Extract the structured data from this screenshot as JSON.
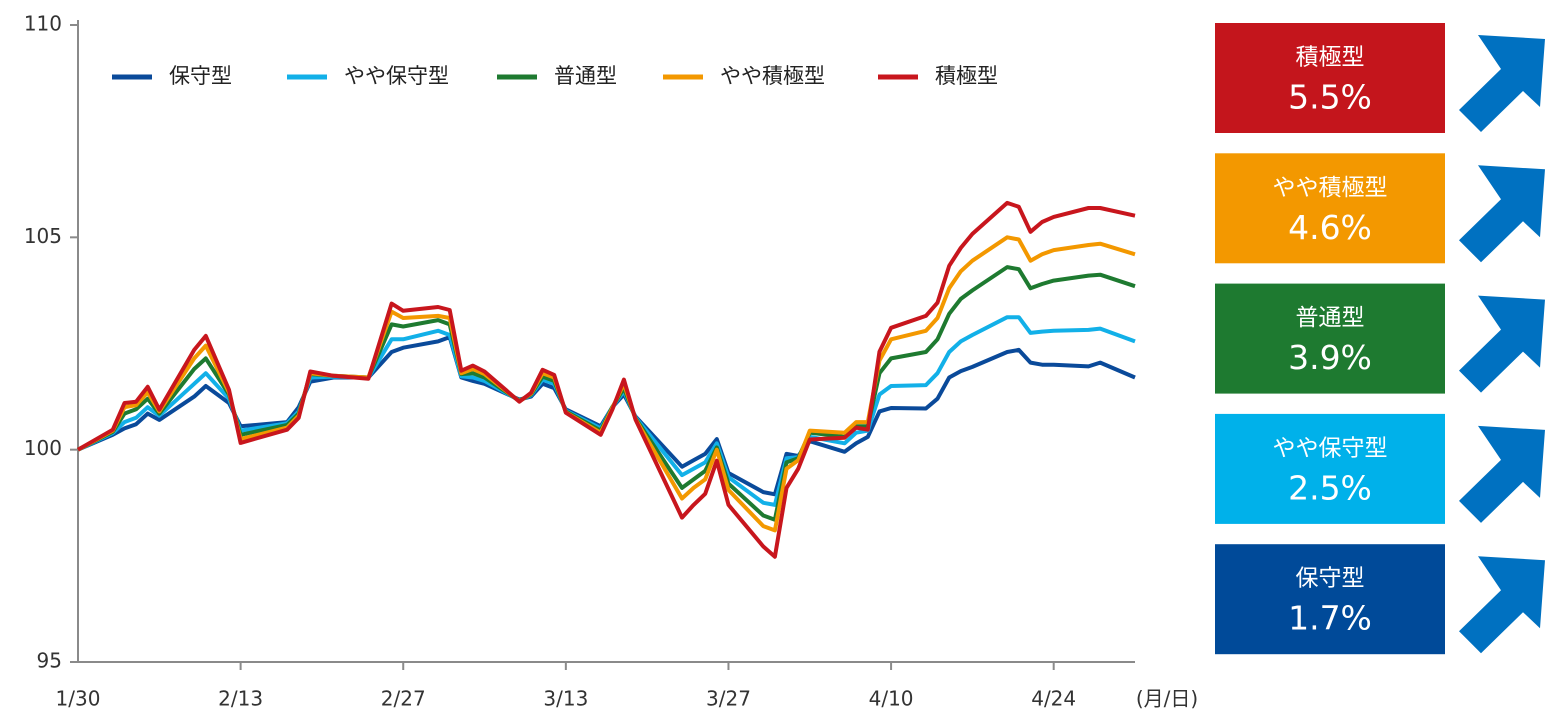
{
  "chart_data": {
    "type": "line",
    "x_label": "(月/日)",
    "xlim": [
      0,
      91
    ],
    "xticks": [
      {
        "value": 0,
        "label": "1/30"
      },
      {
        "value": 14,
        "label": "2/13"
      },
      {
        "value": 28,
        "label": "2/27"
      },
      {
        "value": 42,
        "label": "3/13"
      },
      {
        "value": 56,
        "label": "3/27"
      },
      {
        "value": 70,
        "label": "4/10"
      },
      {
        "value": 84,
        "label": "4/24"
      }
    ],
    "ylim": [
      95,
      110
    ],
    "yticks": [
      95,
      100,
      105,
      110
    ],
    "grid": false,
    "x": [
      0,
      3,
      4,
      5,
      6,
      7,
      10,
      11,
      13,
      14,
      18,
      19,
      20,
      22,
      25,
      27,
      28,
      31,
      32,
      33,
      34,
      35,
      38,
      39,
      40,
      41,
      42,
      45,
      46,
      47,
      48,
      52,
      53,
      54,
      55,
      56,
      59,
      60,
      61,
      62,
      63,
      66,
      67,
      68,
      69,
      70,
      73,
      74,
      75,
      76,
      77,
      80,
      81,
      82,
      83,
      84,
      87,
      88,
      91
    ],
    "series": [
      {
        "name": "保守型",
        "color": "#0a4a9a",
        "values": [
          100,
          100.35,
          100.5,
          100.6,
          100.85,
          100.7,
          101.25,
          101.5,
          101.1,
          100.55,
          100.65,
          101,
          101.6,
          101.7,
          101.7,
          102.3,
          102.4,
          102.55,
          102.65,
          101.7,
          101.62,
          101.55,
          101.18,
          101.25,
          101.55,
          101.45,
          100.95,
          100.55,
          101,
          101.3,
          100.78,
          99.6,
          99.75,
          99.9,
          100.25,
          99.45,
          99,
          98.95,
          99.9,
          99.85,
          100.2,
          99.95,
          100.15,
          100.3,
          100.9,
          100.98,
          100.97,
          101.2,
          101.7,
          101.85,
          101.95,
          102.3,
          102.35,
          102.05,
          102,
          102,
          101.96,
          102.05,
          101.7
        ]
      },
      {
        "name": "やや保守型",
        "color": "#12b0e8",
        "values": [
          100,
          100.39,
          100.65,
          100.75,
          101,
          100.8,
          101.55,
          101.8,
          101.2,
          100.45,
          100.62,
          100.9,
          101.7,
          101.72,
          101.7,
          102.6,
          102.6,
          102.8,
          102.7,
          101.73,
          101.7,
          101.62,
          101.16,
          101.28,
          101.65,
          101.55,
          100.92,
          100.5,
          101,
          101.38,
          100.76,
          99.4,
          99.55,
          99.7,
          100.15,
          99.35,
          98.75,
          98.7,
          99.8,
          99.82,
          100.3,
          100.15,
          100.4,
          100.45,
          101.3,
          101.5,
          101.52,
          101.8,
          102.3,
          102.55,
          102.7,
          103.12,
          103.12,
          102.75,
          102.78,
          102.8,
          102.82,
          102.85,
          102.55
        ]
      },
      {
        "name": "普通型",
        "color": "#1e7a30",
        "values": [
          100,
          100.42,
          100.85,
          100.95,
          101.2,
          100.85,
          101.9,
          102.15,
          101.3,
          100.35,
          100.58,
          100.85,
          101.78,
          101.74,
          101.7,
          102.95,
          102.9,
          103.05,
          102.95,
          101.78,
          101.8,
          101.7,
          101.15,
          101.3,
          101.72,
          101.62,
          100.9,
          100.45,
          101,
          101.45,
          100.74,
          99.1,
          99.3,
          99.5,
          100.05,
          99.2,
          98.45,
          98.35,
          99.7,
          99.8,
          100.4,
          100.3,
          100.55,
          100.55,
          101.8,
          102.15,
          102.3,
          102.6,
          103.2,
          103.55,
          103.75,
          104.3,
          104.25,
          103.8,
          103.9,
          103.98,
          104.1,
          104.12,
          103.85
        ]
      },
      {
        "name": "やや積極型",
        "color": "#f39800",
        "values": [
          100,
          100.45,
          101,
          101.05,
          101.35,
          100.9,
          102.15,
          102.45,
          101.35,
          100.25,
          100.52,
          100.8,
          101.8,
          101.74,
          101.7,
          103.25,
          103.1,
          103.15,
          103.1,
          101.8,
          101.9,
          101.78,
          101.14,
          101.32,
          101.8,
          101.7,
          100.88,
          100.4,
          100.98,
          101.55,
          100.72,
          98.85,
          99.1,
          99.3,
          100,
          99.05,
          98.2,
          98.1,
          99.55,
          99.75,
          100.45,
          100.4,
          100.65,
          100.65,
          102.1,
          102.6,
          102.8,
          103.1,
          103.8,
          104.2,
          104.45,
          105,
          104.95,
          104.45,
          104.6,
          104.7,
          104.82,
          104.85,
          104.6
        ]
      },
      {
        "name": "積極型",
        "color": "#c8161d",
        "values": [
          100,
          100.47,
          101.1,
          101.13,
          101.48,
          100.94,
          102.35,
          102.68,
          101.41,
          100.16,
          100.47,
          100.75,
          101.84,
          101.74,
          101.67,
          103.44,
          103.27,
          103.36,
          103.29,
          101.86,
          101.98,
          101.84,
          101.13,
          101.34,
          101.88,
          101.76,
          100.87,
          100.35,
          100.94,
          101.65,
          100.71,
          98.4,
          98.7,
          98.96,
          99.74,
          98.7,
          97.72,
          97.48,
          99.1,
          99.55,
          100.24,
          100.28,
          100.52,
          100.47,
          102.31,
          102.87,
          103.15,
          103.46,
          104.33,
          104.75,
          105.08,
          105.81,
          105.72,
          105.13,
          105.36,
          105.48,
          105.69,
          105.69,
          105.51
        ]
      }
    ]
  },
  "summary": [
    {
      "label": "積極型",
      "change": "5.5%",
      "color": "#c4151c"
    },
    {
      "label": "やや積極型",
      "change": "4.6%",
      "color": "#f39800"
    },
    {
      "label": "普通型",
      "change": "3.9%",
      "color": "#1e7a30"
    },
    {
      "label": "やや保守型",
      "change": "2.5%",
      "color": "#00b1ea"
    },
    {
      "label": "保守型",
      "change": "1.7%",
      "color": "#004a99"
    }
  ]
}
